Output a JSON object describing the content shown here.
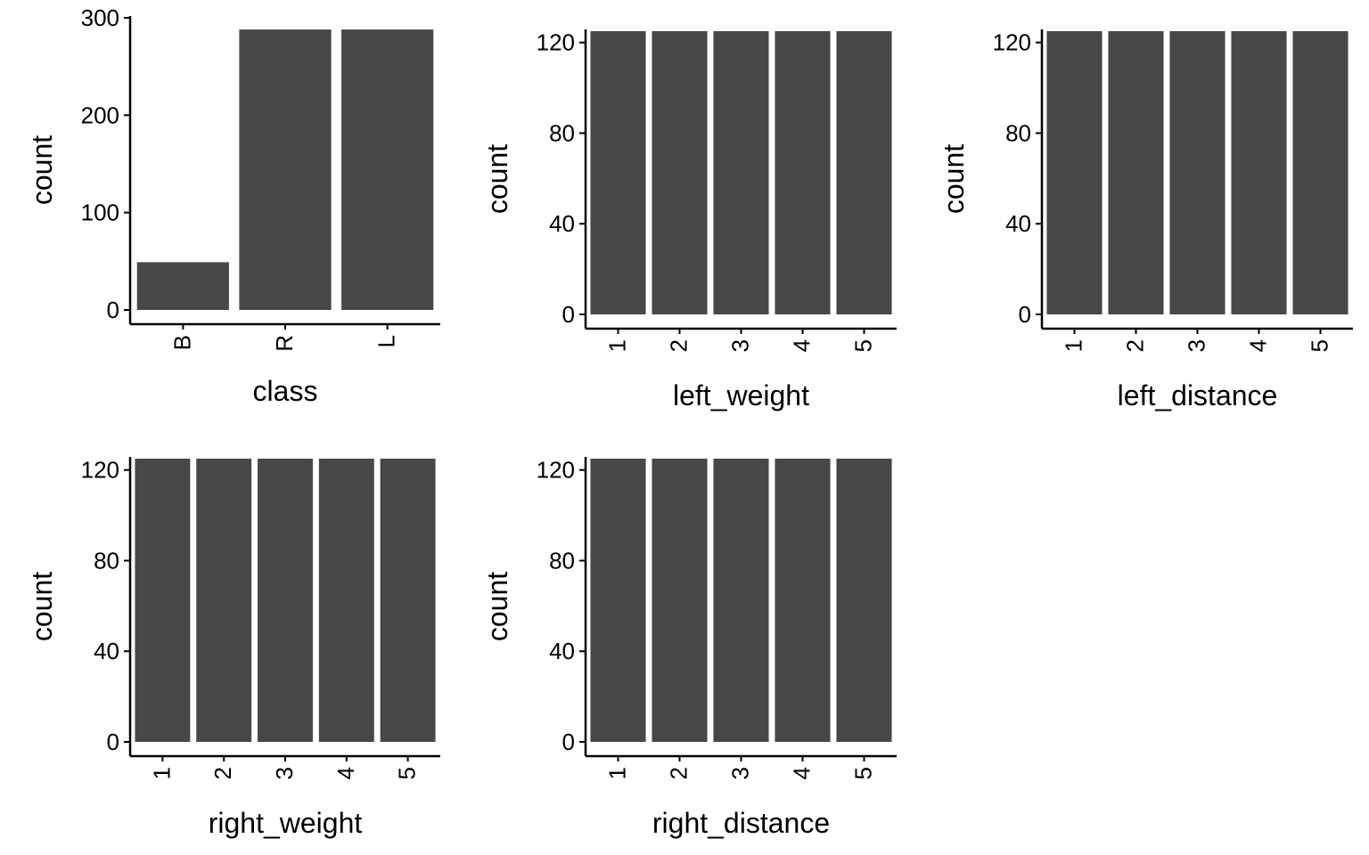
{
  "colors": {
    "bar": "#474747",
    "axis": "#000000",
    "background": "#ffffff"
  },
  "chart_data": [
    {
      "type": "bar",
      "title": "",
      "xlabel": "class",
      "ylabel": "count",
      "categories": [
        "B",
        "R",
        "L"
      ],
      "values": [
        49,
        288,
        288
      ],
      "ylim": [
        0,
        300
      ],
      "yticks": [
        0,
        100,
        200,
        300
      ],
      "grid": false
    },
    {
      "type": "bar",
      "title": "",
      "xlabel": "left_weight",
      "ylabel": "count",
      "categories": [
        "1",
        "2",
        "3",
        "4",
        "5"
      ],
      "values": [
        125,
        125,
        125,
        125,
        125
      ],
      "ylim": [
        0,
        125
      ],
      "yticks": [
        0,
        40,
        80,
        120
      ],
      "grid": false
    },
    {
      "type": "bar",
      "title": "",
      "xlabel": "left_distance",
      "ylabel": "count",
      "categories": [
        "1",
        "2",
        "3",
        "4",
        "5"
      ],
      "values": [
        125,
        125,
        125,
        125,
        125
      ],
      "ylim": [
        0,
        125
      ],
      "yticks": [
        0,
        40,
        80,
        120
      ],
      "grid": false
    },
    {
      "type": "bar",
      "title": "",
      "xlabel": "right_weight",
      "ylabel": "count",
      "categories": [
        "1",
        "2",
        "3",
        "4",
        "5"
      ],
      "values": [
        125,
        125,
        125,
        125,
        125
      ],
      "ylim": [
        0,
        125
      ],
      "yticks": [
        0,
        40,
        80,
        120
      ],
      "grid": false
    },
    {
      "type": "bar",
      "title": "",
      "xlabel": "right_distance",
      "ylabel": "count",
      "categories": [
        "1",
        "2",
        "3",
        "4",
        "5"
      ],
      "values": [
        125,
        125,
        125,
        125,
        125
      ],
      "ylim": [
        0,
        125
      ],
      "yticks": [
        0,
        40,
        80,
        120
      ],
      "grid": false
    }
  ]
}
